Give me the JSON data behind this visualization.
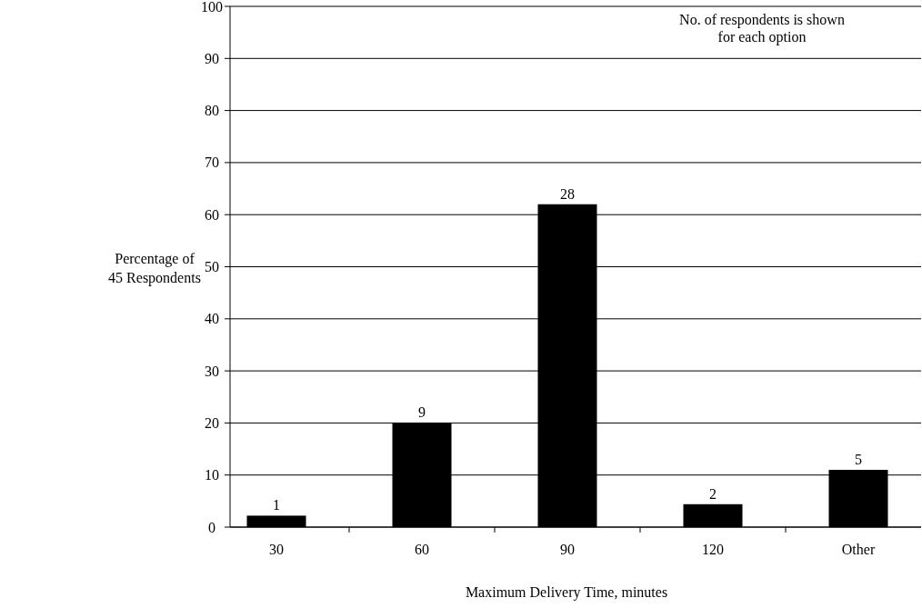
{
  "chart_data": {
    "type": "bar",
    "xlabel": "Maximum Delivery Time, minutes",
    "ylabel": "Percentage of 45 Respondents",
    "categories": [
      "30",
      "60",
      "90",
      "120",
      "Other"
    ],
    "values": [
      2.2,
      20,
      62,
      4.4,
      11
    ],
    "color": "#000000",
    "ylim": [
      0,
      100
    ],
    "yticks": [
      0,
      10,
      20,
      30,
      40,
      50,
      60,
      70,
      80,
      90,
      100
    ],
    "grid": "y",
    "annotations": [
      "No. of respondents is shown for each option",
      {
        "text": "1",
        "x": "30",
        "y": 2.2
      },
      {
        "text": "9",
        "x": "60",
        "y": 20
      },
      {
        "text": "28",
        "x": "90",
        "y": 62
      },
      {
        "text": "2",
        "x": "120",
        "y": 4.4
      },
      {
        "text": "5",
        "x": "Other",
        "y": 11
      }
    ]
  }
}
